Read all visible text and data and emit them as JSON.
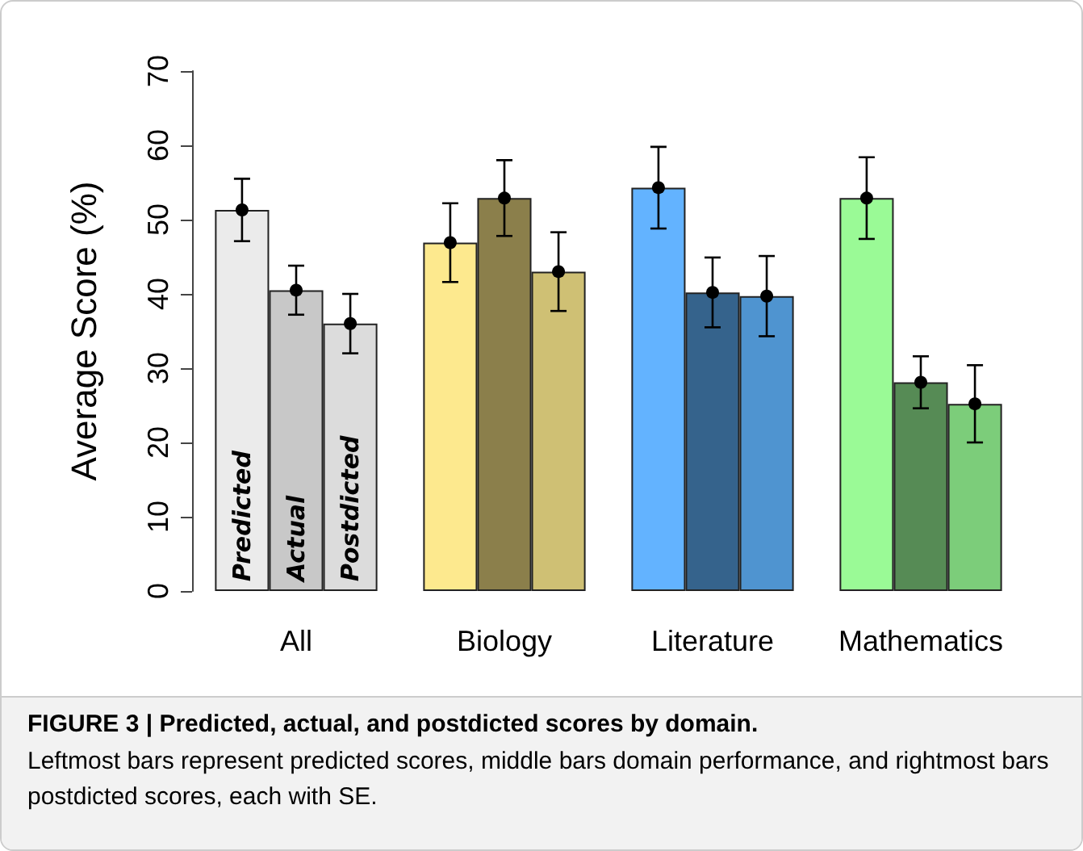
{
  "chart_data": {
    "type": "bar",
    "title": "FIGURE 3 | Predicted, actual, and postdicted scores by domain.",
    "annotations": [
      "Leftmost bars represent predicted scores, middle bars domain performance, and rightmost bars postdicted scores, each with SE."
    ],
    "ylabel": "Average Score (%)",
    "categories": [
      "All",
      "Biology",
      "Literature",
      "Mathematics"
    ],
    "series": [
      {
        "name": "Predicted",
        "colors": [
          "#ebebeb",
          "#fde98e",
          "#63b3ff",
          "#9afa96"
        ],
        "values": [
          51.3,
          46.9,
          54.3,
          52.9
        ],
        "errors": [
          4.2,
          5.3,
          5.5,
          5.5
        ]
      },
      {
        "name": "Actual",
        "colors": [
          "#c8c8c8",
          "#8b7f4b",
          "#35638c",
          "#568b55"
        ],
        "values": [
          40.5,
          52.9,
          40.2,
          28.1
        ],
        "errors": [
          3.3,
          5.1,
          4.7,
          3.5
        ]
      },
      {
        "name": "Postdicted",
        "colors": [
          "#dcdcdc",
          "#cfc074",
          "#4f94d0",
          "#7ccd7a"
        ],
        "values": [
          36.0,
          43.0,
          39.7,
          25.2
        ],
        "errors": [
          4.0,
          5.3,
          5.4,
          5.2
        ]
      },
      {
        "type": "scatter",
        "color": "#000000",
        "x": [
          "All",
          "Biology",
          "Literature",
          "Mathematics"
        ],
        "values": [
          51.3,
          46.9,
          54.3,
          52.9
        ]
      },
      {
        "type": "scatter",
        "color": "#000000",
        "x": [
          "All",
          "Biology",
          "Literature",
          "Mathematics"
        ],
        "values": [
          40.5,
          52.9,
          40.2,
          28.1
        ]
      },
      {
        "type": "scatter",
        "color": "#000000",
        "x": [
          "All",
          "Biology",
          "Literature",
          "Mathematics"
        ],
        "values": [
          36.0,
          43.0,
          39.7,
          25.2
        ]
      }
    ],
    "ylim": [
      0,
      70
    ],
    "yticks": [
      0,
      10,
      20,
      30,
      40,
      50,
      60,
      70
    ],
    "marker": "circle",
    "grid": false,
    "legend": false
  }
}
